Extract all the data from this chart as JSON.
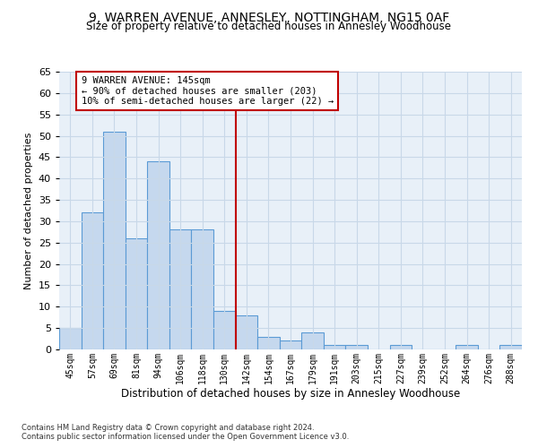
{
  "title": "9, WARREN AVENUE, ANNESLEY, NOTTINGHAM, NG15 0AF",
  "subtitle": "Size of property relative to detached houses in Annesley Woodhouse",
  "xlabel": "Distribution of detached houses by size in Annesley Woodhouse",
  "ylabel": "Number of detached properties",
  "bar_labels": [
    "45sqm",
    "57sqm",
    "69sqm",
    "81sqm",
    "94sqm",
    "106sqm",
    "118sqm",
    "130sqm",
    "142sqm",
    "154sqm",
    "167sqm",
    "179sqm",
    "191sqm",
    "203sqm",
    "215sqm",
    "227sqm",
    "239sqm",
    "252sqm",
    "264sqm",
    "276sqm",
    "288sqm"
  ],
  "bar_values": [
    5,
    32,
    51,
    26,
    44,
    28,
    28,
    9,
    8,
    3,
    2,
    4,
    1,
    1,
    0,
    1,
    0,
    0,
    1,
    0,
    1
  ],
  "bar_color": "#c5d8ee",
  "bar_edge_color": "#5b9bd5",
  "vline_color": "#c00000",
  "annotation_text": "9 WARREN AVENUE: 145sqm\n← 90% of detached houses are smaller (203)\n10% of semi-detached houses are larger (22) →",
  "annotation_box_color": "white",
  "annotation_box_edge": "#c00000",
  "ylim": [
    0,
    65
  ],
  "yticks": [
    0,
    5,
    10,
    15,
    20,
    25,
    30,
    35,
    40,
    45,
    50,
    55,
    60,
    65
  ],
  "bg_color": "#e8f0f8",
  "grid_color": "#c8d8e8",
  "footnote1": "Contains HM Land Registry data © Crown copyright and database right 2024.",
  "footnote2": "Contains public sector information licensed under the Open Government Licence v3.0."
}
